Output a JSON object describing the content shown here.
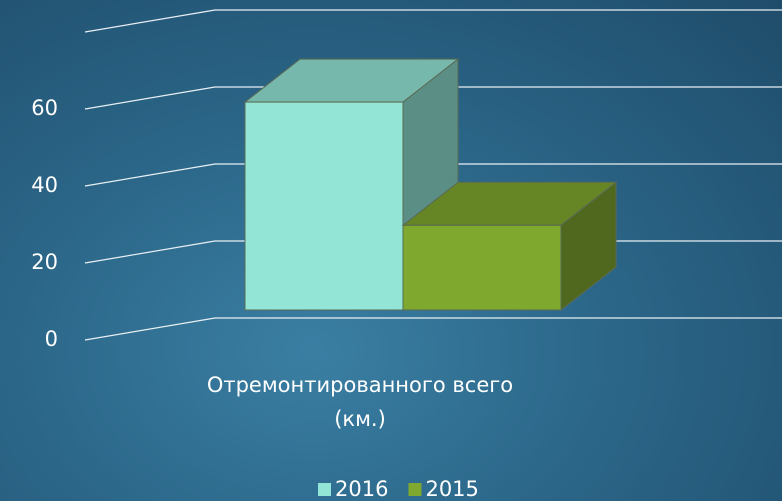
{
  "chart_data": {
    "type": "bar3d",
    "categories": [
      "Отремонтированного всего (км.)"
    ],
    "series": [
      {
        "name": "2016",
        "color": "#93e6d6",
        "values": [
          54
        ]
      },
      {
        "name": "2015",
        "color": "#7fa82e",
        "values": [
          22
        ]
      }
    ],
    "ylim": [
      0,
      80
    ],
    "yticks": [
      0,
      20,
      40,
      60
    ],
    "grid": true
  }
}
